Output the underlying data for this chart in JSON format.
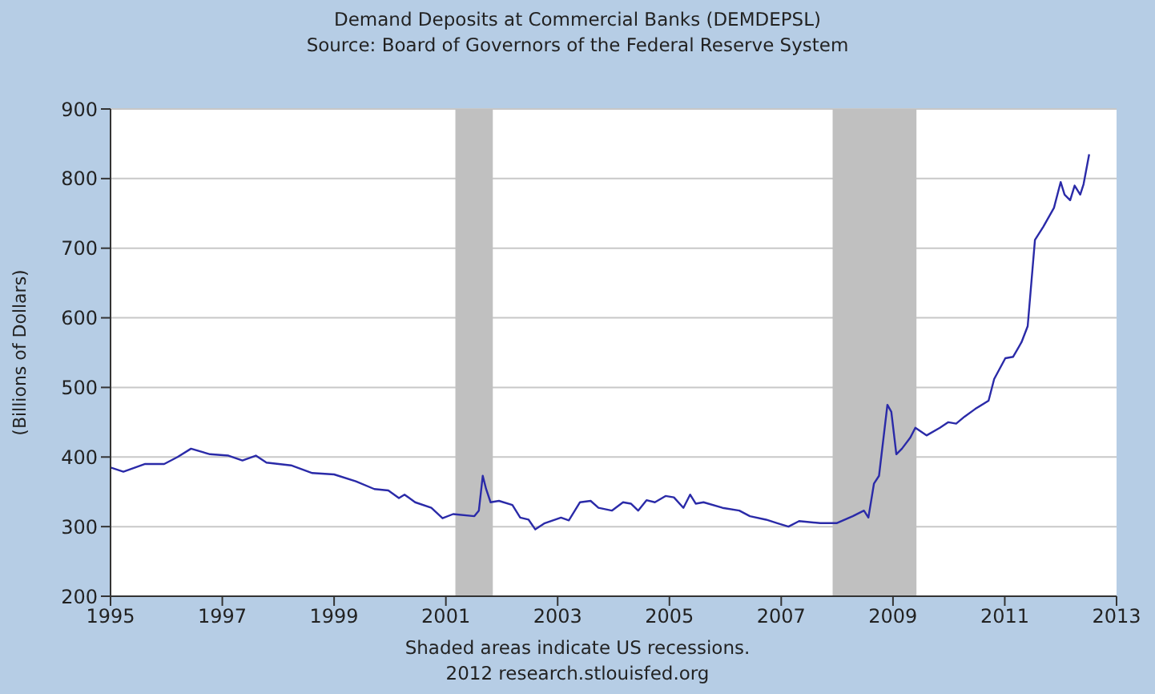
{
  "chart_data": {
    "type": "line",
    "title": "Demand Deposits at Commercial Banks (DEMDEPSL)",
    "subtitle": "Source: Board of Governors of the Federal Reserve System",
    "ylabel": "(Billions of Dollars)",
    "annotations": [
      "Shaded areas indicate US recessions.",
      "2012 research.stlouisfed.org"
    ],
    "xlim": [
      1995,
      2013
    ],
    "xticks": [
      1995,
      1997,
      1999,
      2001,
      2003,
      2005,
      2007,
      2009,
      2011,
      2013
    ],
    "ylim": [
      200,
      900
    ],
    "yticks": [
      200,
      300,
      400,
      500,
      600,
      700,
      800,
      900
    ],
    "grid": "y",
    "bands": [
      {
        "axis": "x",
        "from": 2001.17,
        "to": 2001.84,
        "color": "#c0c0c0"
      },
      {
        "axis": "x",
        "from": 2007.92,
        "to": 2009.42,
        "color": "#c0c0c0"
      }
    ],
    "series": [
      {
        "color": "#2a2aa8",
        "x": [
          1995.0,
          1995.23,
          1995.62,
          1995.96,
          1996.2,
          1996.44,
          1996.78,
          1997.11,
          1997.36,
          1997.6,
          1997.79,
          1998.23,
          1998.61,
          1999.0,
          1999.39,
          1999.72,
          1999.97,
          2000.16,
          2000.26,
          2000.45,
          2000.74,
          2000.94,
          2001.13,
          2001.51,
          2001.59,
          2001.66,
          2001.72,
          2001.8,
          2001.95,
          2002.19,
          2002.33,
          2002.48,
          2002.6,
          2002.77,
          2003.06,
          2003.2,
          2003.4,
          2003.59,
          2003.73,
          2003.97,
          2004.17,
          2004.31,
          2004.44,
          2004.59,
          2004.74,
          2004.93,
          2005.08,
          2005.25,
          2005.37,
          2005.47,
          2005.61,
          2005.95,
          2006.25,
          2006.44,
          2006.73,
          2006.93,
          2007.13,
          2007.32,
          2007.7,
          2007.99,
          2008.28,
          2008.48,
          2008.56,
          2008.66,
          2008.75,
          2008.9,
          2008.97,
          2009.06,
          2009.16,
          2009.31,
          2009.4,
          2009.6,
          2009.84,
          2009.99,
          2010.13,
          2010.28,
          2010.47,
          2010.71,
          2010.81,
          2011.01,
          2011.15,
          2011.3,
          2011.41,
          2011.54,
          2011.69,
          2011.88,
          2012.0,
          2012.07,
          2012.17,
          2012.25,
          2012.35,
          2012.41,
          2012.51
        ],
        "values": [
          385,
          379,
          390,
          390,
          400,
          412,
          404,
          402,
          395,
          402,
          392,
          388,
          377,
          375,
          365,
          354,
          352,
          341,
          346,
          335,
          327,
          312,
          318,
          315,
          323,
          373,
          354,
          335,
          337,
          331,
          313,
          310,
          296,
          305,
          313,
          309,
          335,
          337,
          327,
          323,
          335,
          333,
          323,
          338,
          335,
          344,
          342,
          327,
          346,
          333,
          335,
          327,
          323,
          315,
          310,
          305,
          300,
          308,
          305,
          305,
          315,
          323,
          313,
          362,
          373,
          475,
          465,
          404,
          412,
          428,
          442,
          431,
          442,
          450,
          448,
          458,
          469,
          481,
          512,
          542,
          544,
          565,
          588,
          712,
          731,
          758,
          795,
          777,
          769,
          790,
          777,
          792,
          835
        ]
      }
    ]
  }
}
